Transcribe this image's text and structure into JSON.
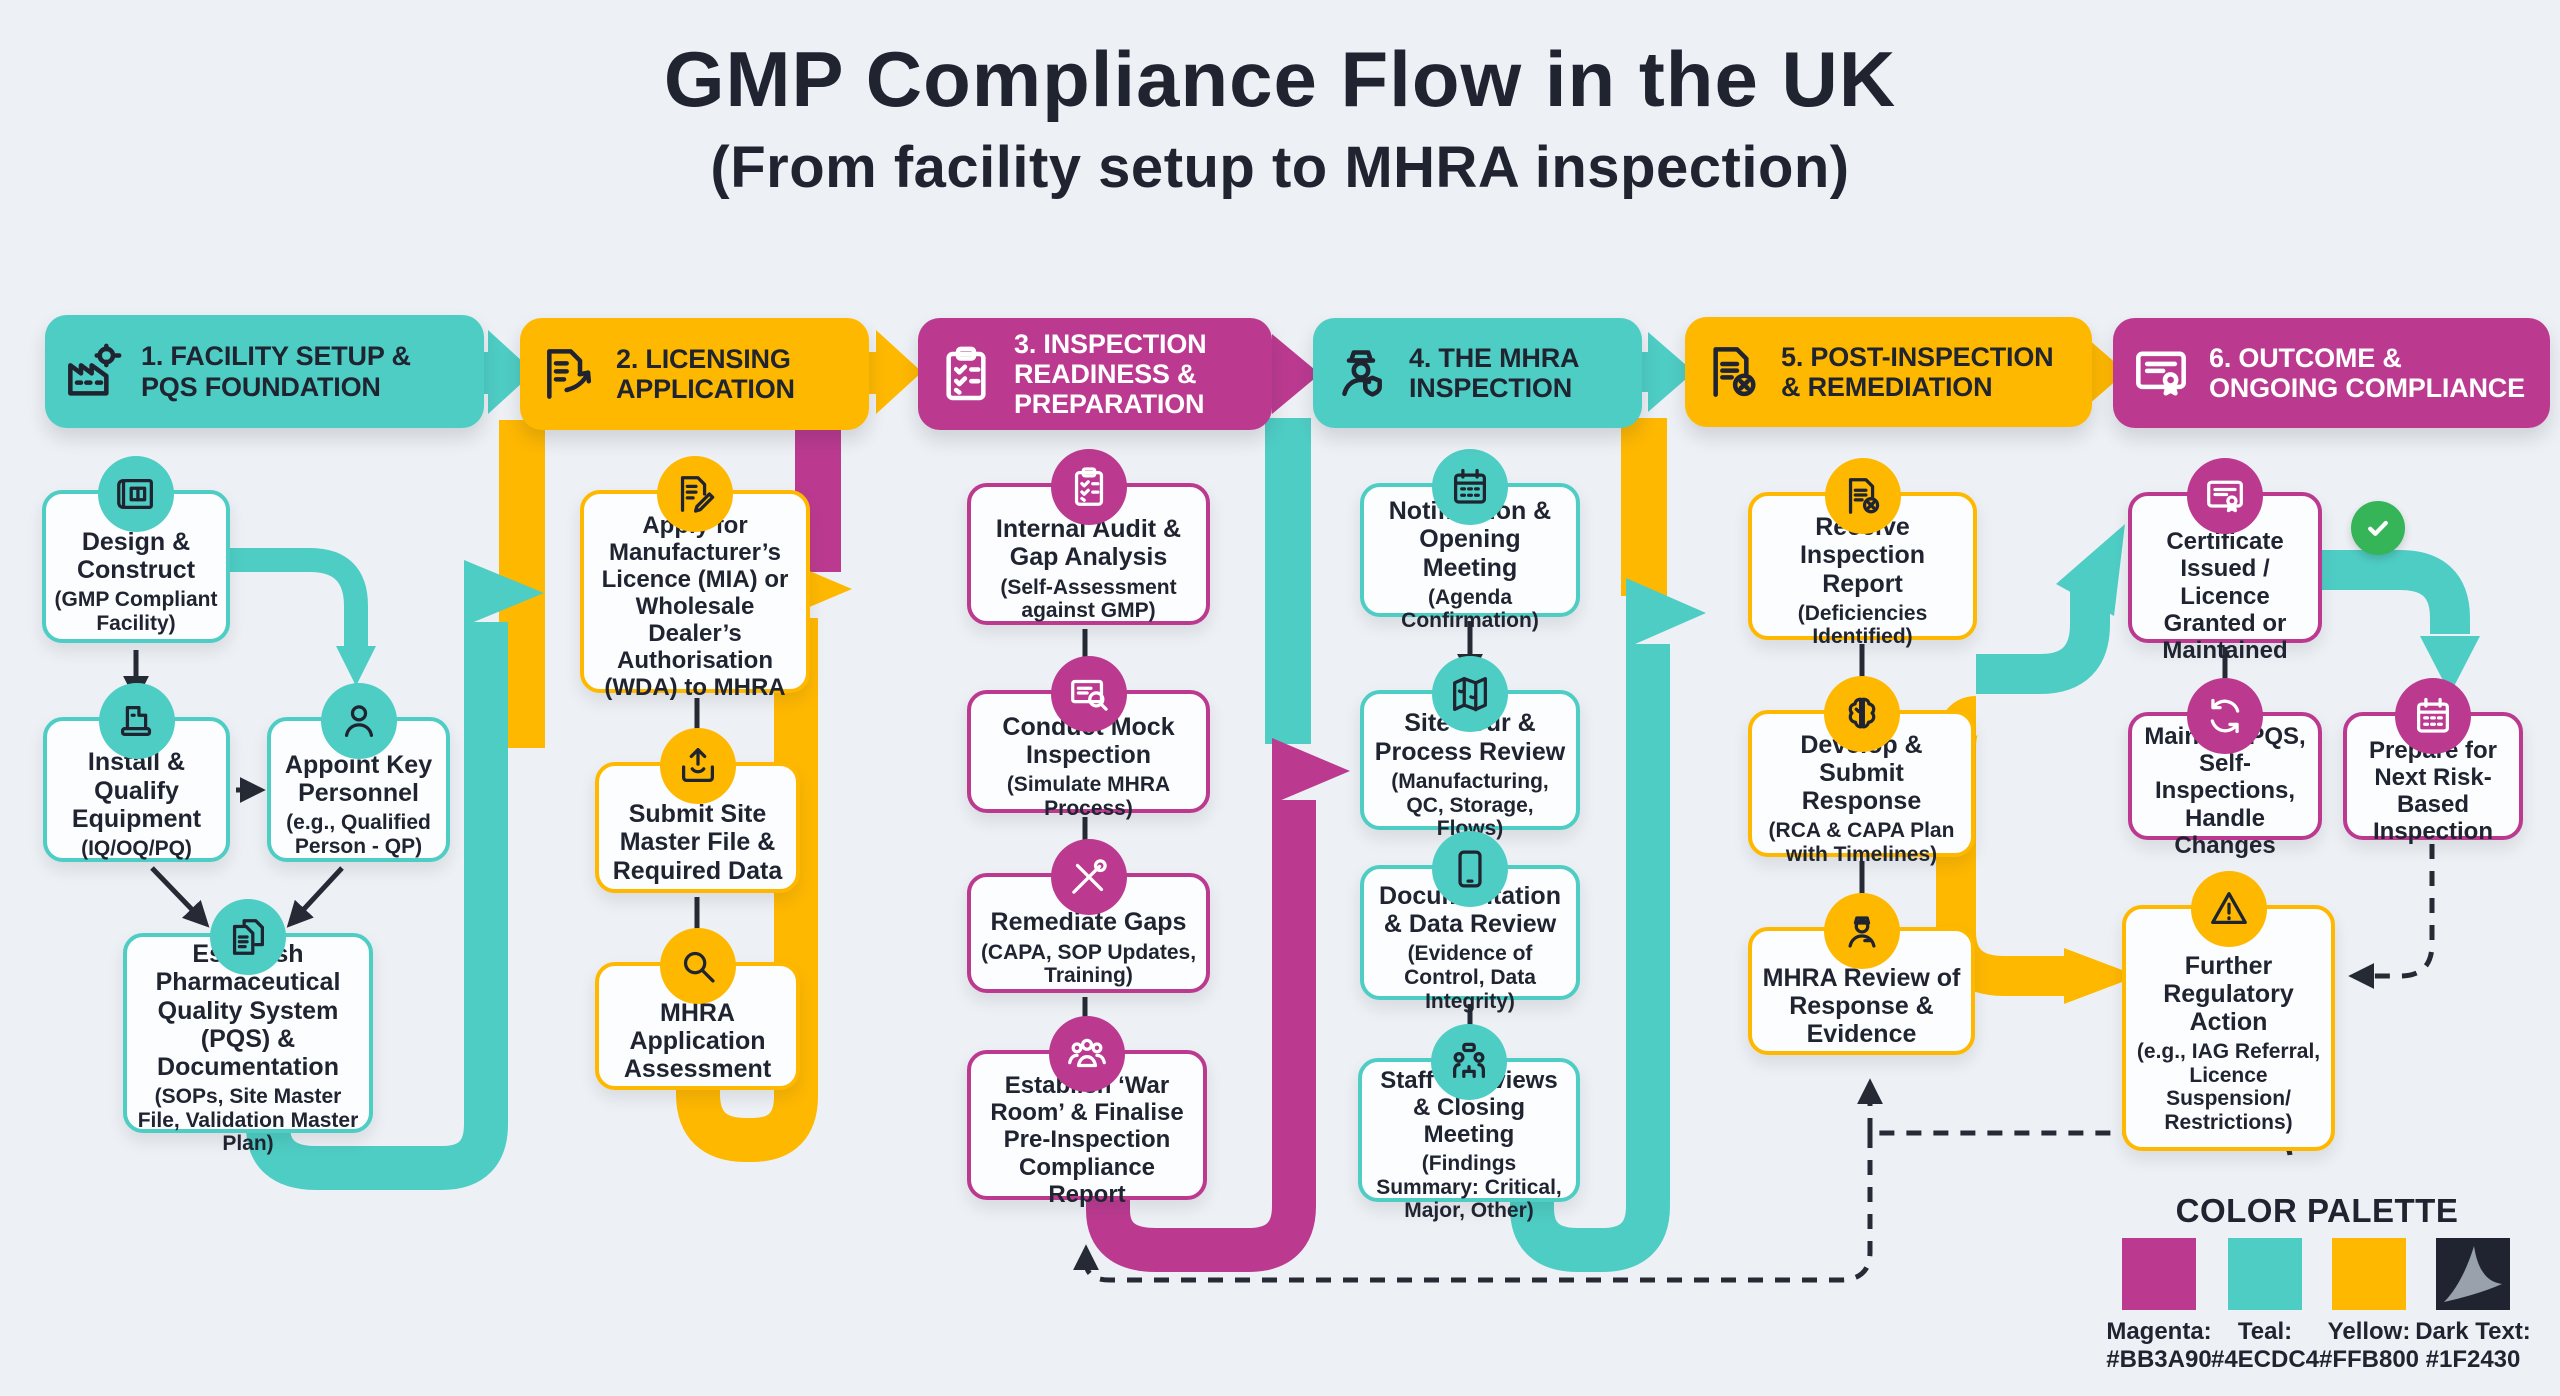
{
  "title": {
    "main": "GMP Compliance Flow in the UK",
    "subtitle": "(From facility setup to MHRA inspection)"
  },
  "colors": {
    "magenta": "#BB3A90",
    "teal": "#4ECDC4",
    "yellow": "#FFB800",
    "dark_text": "#1F2430",
    "success_green": "#35B558"
  },
  "columns": [
    {
      "color": "teal",
      "header": {
        "label": "1. FACILITY SETUP & PQS FOUNDATION",
        "icon": "factory-icon"
      },
      "boxes": [
        {
          "label": "Design & Construct",
          "sublabel": "(GMP Compliant Facility)",
          "icon": "blueprint-icon"
        },
        {
          "label": "Install & Qualify Equipment",
          "sublabel": "(IQ/OQ/PQ)",
          "icon": "machine-icon"
        },
        {
          "label": "Appoint Key Personnel",
          "sublabel": "(e.g., Qualified Person - QP)",
          "icon": "person-icon"
        },
        {
          "label": "Establish Pharmaceutical Quality System (PQS) & Documentation",
          "sublabel": "(SOPs, Site Master File, Validation Master Plan)",
          "icon": "documents-icon"
        }
      ]
    },
    {
      "color": "yellow",
      "header": {
        "label": "2. LICENSING APPLICATION",
        "icon": "doc-arrow-icon"
      },
      "boxes": [
        {
          "label": "Apply for Manufacturer’s Licence (MIA) or Wholesale Dealer’s Authorisation (WDA) to MHRA",
          "icon": "doc-pencil-icon"
        },
        {
          "label": "Submit Site Master File & Required Data",
          "icon": "upload-icon"
        },
        {
          "label": "MHRA Application Assessment",
          "icon": "magnifier-icon"
        }
      ]
    },
    {
      "color": "magenta",
      "header": {
        "label": "3. INSPECTION READINESS & PREPARATION",
        "icon": "clipboard-icon"
      },
      "boxes": [
        {
          "label": "Internal Audit & Gap Analysis",
          "sublabel": "(Self-Assessment against GMP)",
          "icon": "clipboard-icon"
        },
        {
          "label": "Conduct Mock Inspection",
          "sublabel": "(Simulate MHRA Process)",
          "icon": "cert-magnifier-icon"
        },
        {
          "label": "Remediate Gaps",
          "sublabel": "(CAPA, SOP Updates, Training)",
          "icon": "tools-icon"
        },
        {
          "label": "Establish ‘War Room’ & Finalise Pre-Inspection Compliance Report",
          "icon": "people-icon"
        }
      ]
    },
    {
      "color": "teal",
      "header": {
        "label": "4. THE MHRA INSPECTION",
        "icon": "police-icon"
      },
      "boxes": [
        {
          "label": "Notification & Opening Meeting",
          "sublabel": "(Agenda Confirmation)",
          "icon": "calendar-icon"
        },
        {
          "label": "Site Tour & Process Review",
          "sublabel": "(Manufacturing, QC, Storage, Flows)",
          "icon": "map-icon"
        },
        {
          "label": "Documentation & Data Review",
          "sublabel": "(Evidence of Control, Data Integrity)",
          "icon": "tablet-icon"
        },
        {
          "label": "Staff Interviews & Closing Meeting",
          "sublabel": "(Findings Summary: Critical, Major, Other)",
          "icon": "interview-icon"
        }
      ]
    },
    {
      "color": "yellow",
      "header": {
        "label": "5. POST-INSPECTION & REMEDIATION",
        "icon": "doc-x-icon"
      },
      "boxes": [
        {
          "label": "Receive Inspection Report",
          "sublabel": "(Deficiencies Identified)",
          "icon": "doc-x-icon"
        },
        {
          "label": "Develop & Submit Response",
          "sublabel": "(RCA & CAPA Plan with Timelines)",
          "icon": "brain-icon"
        },
        {
          "label": "MHRA Review of Response & Evidence",
          "icon": "worker-icon"
        }
      ]
    },
    {
      "color": "magenta",
      "header": {
        "label": "6. OUTCOME & ONGOING COMPLIANCE",
        "icon": "certificate-icon"
      },
      "boxes": [
        {
          "label": "GMP Certificate Issued / Licence Granted or Maintained",
          "icon": "certificate-icon"
        },
        {
          "label": "Maintain PQS, Self-Inspections, Handle Changes",
          "icon": "refresh-icon"
        },
        {
          "label": "Prepare for Next Risk-Based Inspection",
          "icon": "calendar-icon"
        },
        {
          "label": "Further Regulatory Action",
          "sublabel": "(e.g., IAG Referral, Licence Suspension/ Restrictions)",
          "icon": "warning-icon"
        }
      ]
    }
  ],
  "success_icon": "check-circle-icon",
  "palette": {
    "title": "COLOR PALETTE",
    "entries": [
      {
        "name": "Magenta:",
        "hex": "#BB3A90"
      },
      {
        "name": "Teal:",
        "hex": "#4ECDC4"
      },
      {
        "name": "Yellow:",
        "hex": "#FFB800"
      },
      {
        "name": "Dark Text:",
        "hex": "#1F2430"
      }
    ]
  }
}
